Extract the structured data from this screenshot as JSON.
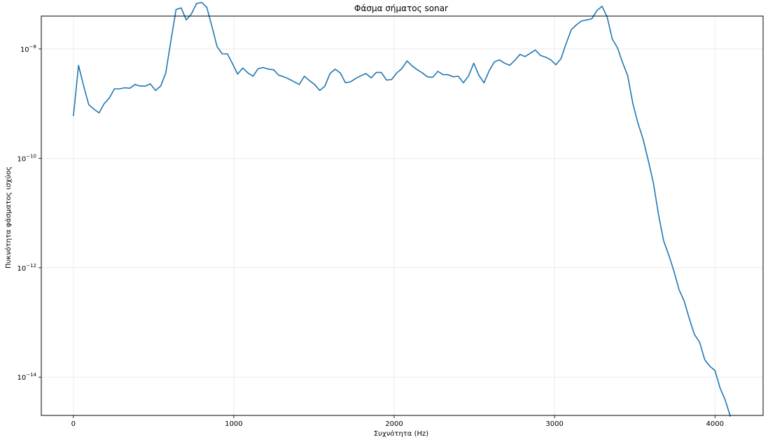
{
  "chart_data": {
    "type": "line",
    "title": "Φάσμα σήματος sonar",
    "xlabel": "Συχνότητα (Hz)",
    "ylabel": "Πυκνότητα φάσματος ισχύος",
    "xscale": "linear",
    "yscale": "log",
    "xlim": [
      -200,
      4300
    ],
    "ylim_log10": [
      -14.7,
      -7.4
    ],
    "grid": true,
    "x_ticks": [
      0,
      1000,
      2000,
      3000,
      4000
    ],
    "x_tick_labels": [
      "0",
      "1000",
      "2000",
      "3000",
      "4000"
    ],
    "y_ticks_exp": [
      -8,
      -10,
      -12,
      -14
    ],
    "y_tick_base": "10",
    "y_tick_exponents": [
      "−8",
      "−10",
      "−12",
      "−14"
    ],
    "line_color": "#1f77b4",
    "series": [
      {
        "x": [
          0,
          32,
          64,
          96,
          128,
          160,
          192,
          224,
          256,
          288,
          320,
          352,
          384,
          416,
          448,
          480,
          512,
          544,
          576,
          608,
          640,
          672,
          704,
          736,
          768,
          800,
          832,
          864,
          896,
          928,
          960,
          992,
          1024,
          1056,
          1088,
          1120,
          1152,
          1184,
          1216,
          1248,
          1280,
          1312,
          1344,
          1376,
          1408,
          1440,
          1472,
          1504,
          1536,
          1568,
          1600,
          1632,
          1664,
          1696,
          1728,
          1760,
          1792,
          1824,
          1856,
          1888,
          1920,
          1952,
          1984,
          2016,
          2048,
          2080,
          2112,
          2144,
          2176,
          2208,
          2240,
          2272,
          2304,
          2336,
          2368,
          2400,
          2432,
          2464,
          2496,
          2528,
          2560,
          2592,
          2624,
          2656,
          2688,
          2720,
          2752,
          2784,
          2816,
          2848,
          2880,
          2912,
          2944,
          2976,
          3008,
          3040,
          3072,
          3104,
          3136,
          3168,
          3200,
          3232,
          3264,
          3296,
          3328,
          3360,
          3392,
          3424,
          3456,
          3488,
          3520,
          3552,
          3584,
          3616,
          3648,
          3680,
          3712,
          3744,
          3776,
          3808,
          3840,
          3872,
          3904,
          3936,
          3968,
          4000,
          4032,
          4064,
          4096
        ],
        "y_log10": [
          -9.23,
          -8.3,
          -8.68,
          -9.02,
          -9.1,
          -9.17,
          -9.0,
          -8.9,
          -8.73,
          -8.73,
          -8.71,
          -8.72,
          -8.65,
          -8.68,
          -8.68,
          -8.64,
          -8.76,
          -8.68,
          -8.44,
          -7.85,
          -7.28,
          -7.25,
          -7.47,
          -7.36,
          -7.17,
          -7.15,
          -7.24,
          -7.59,
          -7.96,
          -8.09,
          -8.09,
          -8.27,
          -8.46,
          -8.35,
          -8.44,
          -8.5,
          -8.36,
          -8.34,
          -8.37,
          -8.38,
          -8.48,
          -8.51,
          -8.55,
          -8.6,
          -8.65,
          -8.5,
          -8.58,
          -8.65,
          -8.76,
          -8.68,
          -8.45,
          -8.37,
          -8.44,
          -8.62,
          -8.6,
          -8.54,
          -8.49,
          -8.45,
          -8.53,
          -8.43,
          -8.43,
          -8.57,
          -8.56,
          -8.44,
          -8.36,
          -8.22,
          -8.31,
          -8.38,
          -8.44,
          -8.51,
          -8.52,
          -8.41,
          -8.47,
          -8.47,
          -8.51,
          -8.5,
          -8.62,
          -8.49,
          -8.26,
          -8.48,
          -8.62,
          -8.4,
          -8.24,
          -8.2,
          -8.26,
          -8.3,
          -8.21,
          -8.1,
          -8.14,
          -8.08,
          -8.02,
          -8.12,
          -8.15,
          -8.2,
          -8.29,
          -8.18,
          -7.9,
          -7.65,
          -7.56,
          -7.49,
          -7.47,
          -7.45,
          -7.3,
          -7.22,
          -7.42,
          -7.82,
          -7.98,
          -8.25,
          -8.49,
          -9.0,
          -9.36,
          -9.65,
          -10.04,
          -10.45,
          -11.03,
          -11.51,
          -11.77,
          -12.06,
          -12.4,
          -12.61,
          -12.93,
          -13.22,
          -13.36,
          -13.68,
          -13.8,
          -13.88,
          -14.2,
          -14.42,
          -14.72
        ]
      }
    ]
  }
}
